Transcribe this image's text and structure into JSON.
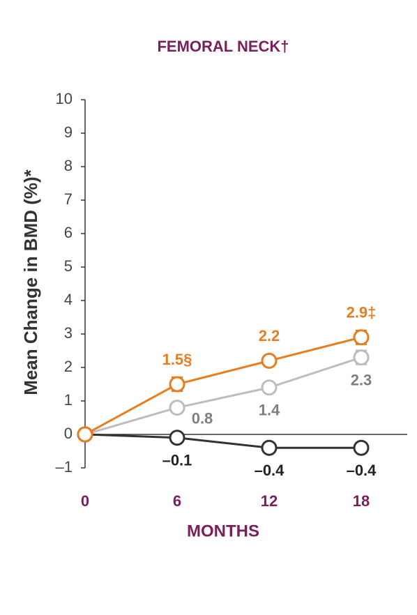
{
  "chart_data": {
    "type": "line",
    "title": "FEMORAL NECK†",
    "ylabel": "Mean Change in BMD (%)*",
    "xlabel": "MONTHS",
    "x": [
      0,
      6,
      12,
      18
    ],
    "xlim": [
      0,
      21
    ],
    "xticks": [
      0,
      6,
      12,
      18
    ],
    "ylim": [
      -1,
      10
    ],
    "yticks": [
      {
        "value": -1,
        "label": "–1"
      },
      0,
      1,
      2,
      3,
      4,
      5,
      6,
      7,
      8,
      9,
      10
    ],
    "series": [
      {
        "color": "#bdbdbd",
        "label_color": "#7f7f7f",
        "values": [
          0,
          0.8,
          1.4,
          2.3
        ],
        "errors": [
          0,
          0.1,
          0.15,
          0.2
        ],
        "value_labels": [
          null,
          "0.8",
          "1.4",
          "2.3"
        ]
      },
      {
        "color": "#333333",
        "label_color": "#222222",
        "values": [
          0,
          -0.1,
          -0.4,
          -0.4
        ],
        "errors": [
          0,
          0.1,
          0.1,
          0.1
        ],
        "value_labels": [
          null,
          "–0.1",
          "–0.4",
          "–0.4"
        ]
      },
      {
        "color": "#e87d1e",
        "label_color": "#e87d1e",
        "values": [
          0,
          1.5,
          2.2,
          2.9
        ],
        "errors": [
          0,
          0.2,
          0.15,
          0.2
        ],
        "value_labels": [
          null,
          "1.5§",
          "2.2",
          "2.9‡"
        ]
      }
    ]
  }
}
